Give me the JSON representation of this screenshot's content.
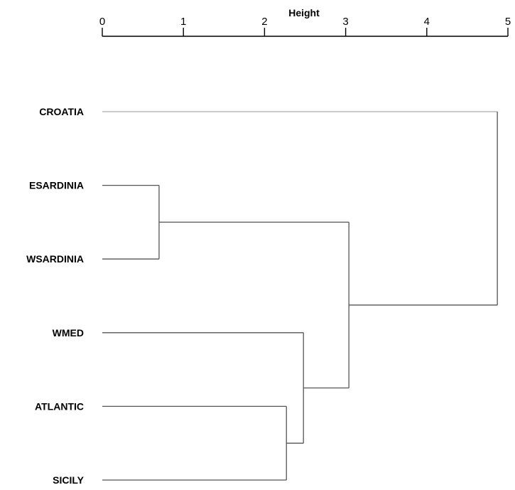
{
  "chart_data": {
    "type": "dendrogram",
    "axis_title": "Height",
    "axis_position": "top",
    "xlim": [
      0,
      5
    ],
    "ticks": [
      "0",
      "1",
      "2",
      "3",
      "4",
      "5"
    ],
    "leaves": [
      "CROATIA",
      "ESARDINIA",
      "WSARDINIA",
      "WMED",
      "ATLANTIC",
      "SICILY"
    ],
    "merges": [
      {
        "id": "m1",
        "children": [
          "ESARDINIA",
          "WSARDINIA"
        ],
        "height": 0.7
      },
      {
        "id": "m2",
        "children": [
          "ATLANTIC",
          "SICILY"
        ],
        "height": 2.27
      },
      {
        "id": "m3",
        "children": [
          "WMED",
          "m2"
        ],
        "height": 2.48
      },
      {
        "id": "m4",
        "children": [
          "m1",
          "m3"
        ],
        "height": 3.04
      },
      {
        "id": "m5",
        "children": [
          "CROATIA",
          "m4"
        ],
        "height": 4.87
      }
    ],
    "colors": {
      "branch": "#555555",
      "branch_light": "#aaaaaa",
      "text": "#000000"
    }
  }
}
